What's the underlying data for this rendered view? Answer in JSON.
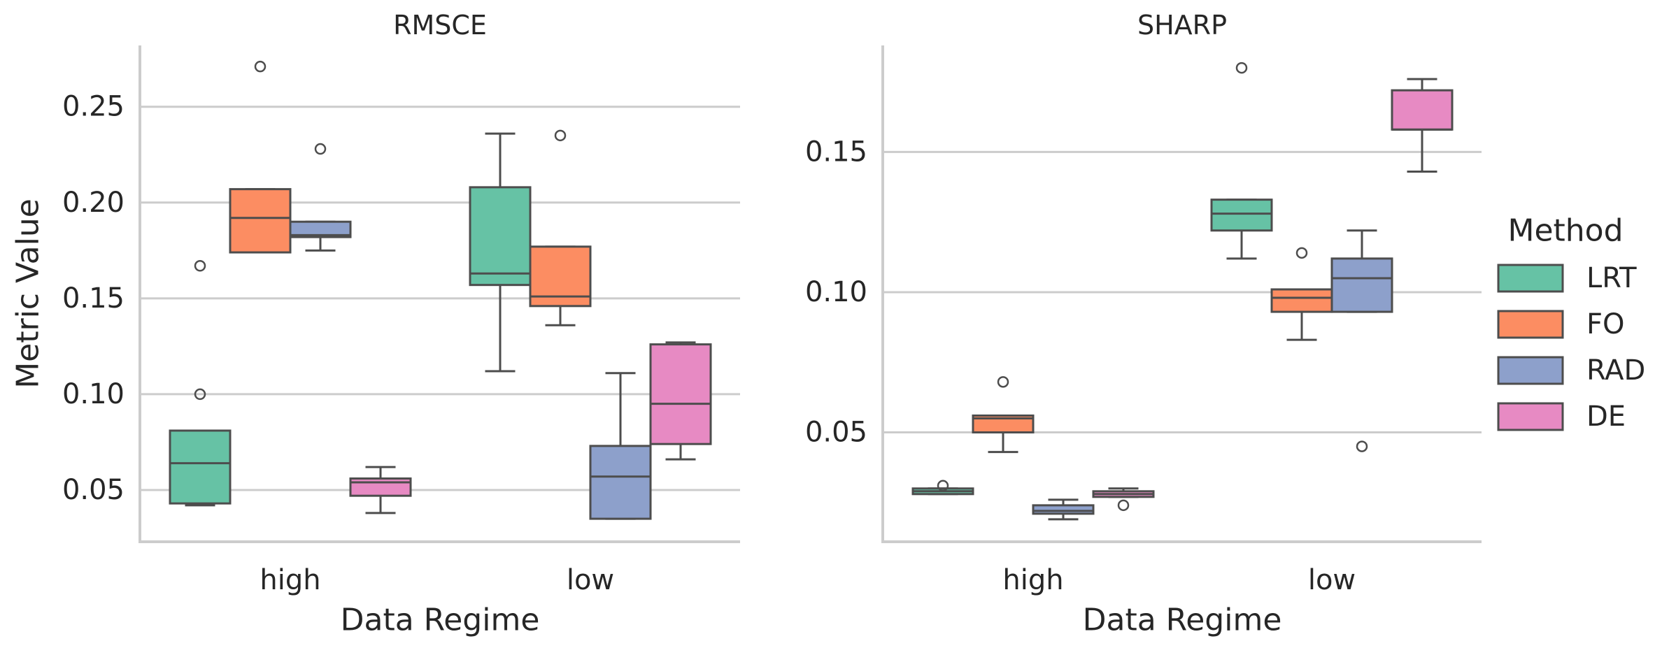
{
  "legend": {
    "title": "Method",
    "entries": [
      {
        "label": "LRT",
        "color": "#66c2a5"
      },
      {
        "label": "FO",
        "color": "#fc8d62"
      },
      {
        "label": "RAD",
        "color": "#8da0cb"
      },
      {
        "label": "DE",
        "color": "#e78ac3"
      }
    ]
  },
  "colors": {
    "grid": "#cccccc",
    "axis": "#cccccc",
    "box_edge": "#4d4d4d",
    "text": "#262626"
  },
  "chart_data": [
    {
      "type": "box",
      "title": "RMSCE",
      "xlabel": "Data Regime",
      "ylabel": "Metric Value",
      "categories": [
        "high",
        "low"
      ],
      "ylim": [
        0.023,
        0.282
      ],
      "yticks": [
        0.05,
        0.1,
        0.15,
        0.2,
        0.25
      ],
      "ytick_labels": [
        "0.05",
        "0.10",
        "0.15",
        "0.20",
        "0.25"
      ],
      "boxes": [
        {
          "category": "high",
          "method": "LRT",
          "whislo": 0.042,
          "q1": 0.043,
          "median": 0.064,
          "q3": 0.081,
          "whishi": 0.081,
          "fliers": [
            0.167,
            0.1
          ]
        },
        {
          "category": "high",
          "method": "FO",
          "whislo": 0.174,
          "q1": 0.174,
          "median": 0.192,
          "q3": 0.207,
          "whishi": 0.207,
          "fliers": [
            0.271
          ]
        },
        {
          "category": "high",
          "method": "RAD",
          "whislo": 0.175,
          "q1": 0.182,
          "median": 0.183,
          "q3": 0.19,
          "whishi": 0.19,
          "fliers": [
            0.228
          ]
        },
        {
          "category": "high",
          "method": "DE",
          "whislo": 0.038,
          "q1": 0.047,
          "median": 0.054,
          "q3": 0.056,
          "whishi": 0.062,
          "fliers": []
        },
        {
          "category": "low",
          "method": "LRT",
          "whislo": 0.112,
          "q1": 0.157,
          "median": 0.163,
          "q3": 0.208,
          "whishi": 0.236,
          "fliers": []
        },
        {
          "category": "low",
          "method": "FO",
          "whislo": 0.136,
          "q1": 0.146,
          "median": 0.151,
          "q3": 0.177,
          "whishi": 0.177,
          "fliers": [
            0.235
          ]
        },
        {
          "category": "low",
          "method": "RAD",
          "whislo": 0.035,
          "q1": 0.035,
          "median": 0.057,
          "q3": 0.073,
          "whishi": 0.111,
          "fliers": []
        },
        {
          "category": "low",
          "method": "DE",
          "whislo": 0.066,
          "q1": 0.074,
          "median": 0.095,
          "q3": 0.126,
          "whishi": 0.127,
          "fliers": []
        }
      ]
    },
    {
      "type": "box",
      "title": "SHARP",
      "xlabel": "Data Regime",
      "ylabel": "",
      "categories": [
        "high",
        "low"
      ],
      "ylim": [
        0.011,
        0.188
      ],
      "yticks": [
        0.05,
        0.1,
        0.15
      ],
      "ytick_labels": [
        "0.05",
        "0.10",
        "0.15"
      ],
      "boxes": [
        {
          "category": "high",
          "method": "LRT",
          "whislo": 0.028,
          "q1": 0.028,
          "median": 0.029,
          "q3": 0.03,
          "whishi": 0.03,
          "fliers": [
            0.031
          ]
        },
        {
          "category": "high",
          "method": "FO",
          "whislo": 0.043,
          "q1": 0.05,
          "median": 0.055,
          "q3": 0.056,
          "whishi": 0.056,
          "fliers": [
            0.068
          ]
        },
        {
          "category": "high",
          "method": "RAD",
          "whislo": 0.019,
          "q1": 0.021,
          "median": 0.022,
          "q3": 0.024,
          "whishi": 0.026,
          "fliers": []
        },
        {
          "category": "high",
          "method": "DE",
          "whislo": 0.027,
          "q1": 0.027,
          "median": 0.028,
          "q3": 0.029,
          "whishi": 0.03,
          "fliers": [
            0.024
          ]
        },
        {
          "category": "low",
          "method": "LRT",
          "whislo": 0.112,
          "q1": 0.122,
          "median": 0.128,
          "q3": 0.133,
          "whishi": 0.133,
          "fliers": [
            0.18
          ]
        },
        {
          "category": "low",
          "method": "FO",
          "whislo": 0.083,
          "q1": 0.093,
          "median": 0.098,
          "q3": 0.101,
          "whishi": 0.101,
          "fliers": [
            0.114
          ]
        },
        {
          "category": "low",
          "method": "RAD",
          "whislo": 0.093,
          "q1": 0.093,
          "median": 0.105,
          "q3": 0.112,
          "whishi": 0.122,
          "fliers": [
            0.045
          ]
        },
        {
          "category": "low",
          "method": "DE",
          "whislo": 0.143,
          "q1": 0.158,
          "median": 0.158,
          "q3": 0.172,
          "whishi": 0.176,
          "fliers": []
        }
      ]
    }
  ]
}
